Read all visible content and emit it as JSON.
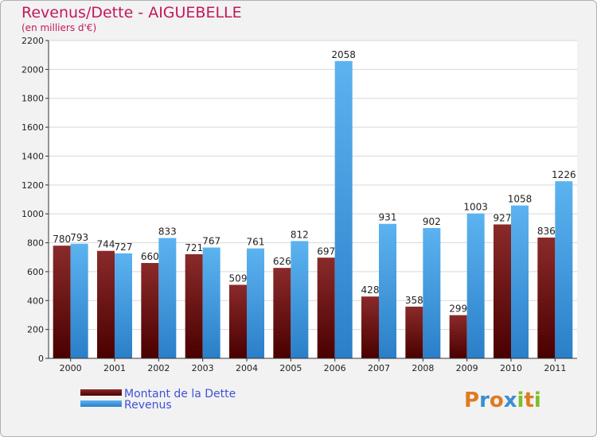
{
  "title": "Revenus/Dette - AIGUEBELLE",
  "subtitle": "(en milliers d'€)",
  "brand": "Proxiti",
  "chart_data": {
    "type": "bar",
    "title": "Revenus/Dette - AIGUEBELLE",
    "subtitle": "(en milliers d'€)",
    "categories": [
      "2000",
      "2001",
      "2002",
      "2003",
      "2004",
      "2005",
      "2006",
      "2007",
      "2008",
      "2009",
      "2010",
      "2011"
    ],
    "series": [
      {
        "name": "Montant de la Dette",
        "color": "#7a1515",
        "values": [
          780,
          744,
          660,
          721,
          509,
          626,
          697,
          428,
          358,
          299,
          927,
          836
        ]
      },
      {
        "name": "Revenus",
        "color": "#4da6e8",
        "values": [
          793,
          727,
          833,
          767,
          761,
          812,
          2058,
          931,
          902,
          1003,
          1058,
          1226
        ]
      }
    ],
    "ylim": [
      0,
      2200
    ],
    "yticks": [
      0,
      200,
      400,
      600,
      800,
      1000,
      1200,
      1400,
      1600,
      1800,
      2000,
      2200
    ],
    "grid": true,
    "legend": "bottom-left"
  }
}
